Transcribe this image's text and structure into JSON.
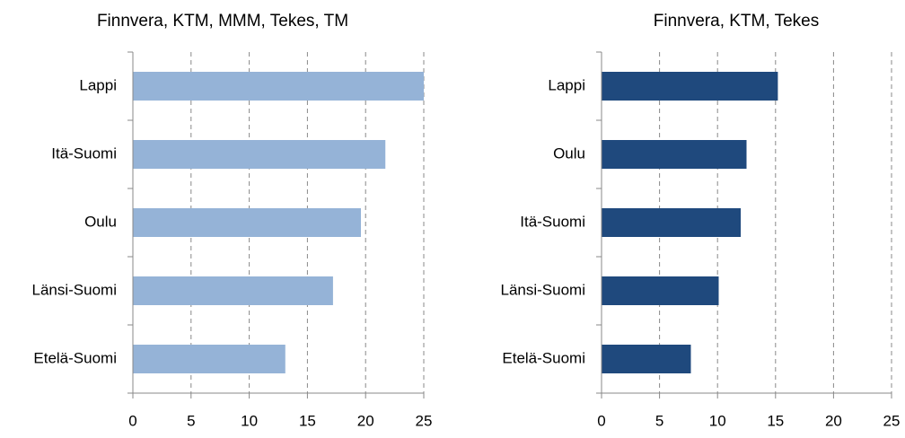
{
  "chart_data": [
    {
      "type": "bar",
      "orientation": "horizontal",
      "title": "Finnvera, KTM, MMM, Tekes, TM",
      "categories": [
        "Lappi",
        "Itä-Suomi",
        "Oulu",
        "Länsi-Suomi",
        "Etelä-Suomi"
      ],
      "values": [
        25,
        21.7,
        19.6,
        17.2,
        13.1
      ],
      "color": "#95b3d7",
      "xlim": [
        0,
        25
      ],
      "xticks": [
        0,
        5,
        10,
        15,
        20,
        25
      ],
      "grid": true
    },
    {
      "type": "bar",
      "orientation": "horizontal",
      "title": "Finnvera, KTM, Tekes",
      "categories": [
        "Lappi",
        "Oulu",
        "Itä-Suomi",
        "Länsi-Suomi",
        "Etelä-Suomi"
      ],
      "values": [
        15.2,
        12.5,
        12.0,
        10.1,
        7.7
      ],
      "color": "#1f497d",
      "xlim": [
        0,
        25
      ],
      "xticks": [
        0,
        5,
        10,
        15,
        20,
        25
      ],
      "grid": true
    }
  ]
}
